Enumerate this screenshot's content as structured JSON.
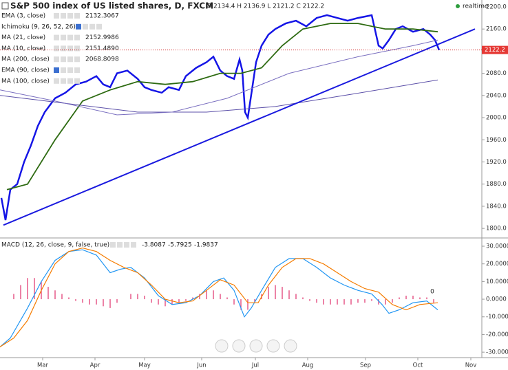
{
  "chart_data": [
    {
      "type": "line",
      "title": "S&P 500 index of US listed shares, D, FXCM",
      "ohlc_text": "O 2134.4 H 2136.9 L 2121.2 C 2122.2",
      "status": "realtime",
      "xlim": [
        0,
        175
      ],
      "ylim": [
        1784,
        2212.4
      ],
      "yticks": [
        {
          "value": 1800,
          "label": "1800.0"
        },
        {
          "value": 1840,
          "label": "1840.0"
        },
        {
          "value": 1880,
          "label": "1880.0"
        },
        {
          "value": 1920,
          "label": "1920.0"
        },
        {
          "value": 1960,
          "label": "1960.0"
        },
        {
          "value": 2000,
          "label": "2000.0"
        },
        {
          "value": 2040,
          "label": "2040.0"
        },
        {
          "value": 2080,
          "label": "2080.0"
        },
        {
          "value": 2120,
          "label": "2120.0"
        },
        {
          "value": 2160,
          "label": "2160.0"
        },
        {
          "value": 2200,
          "label": "2200.0"
        }
      ],
      "last_price": 2122.2,
      "trend_line": {
        "x": [
          1.25,
          172.5
        ],
        "values": [
          1806,
          2160
        ],
        "color": "#1a1adf"
      },
      "series": [
        {
          "name": "EMA (3, close)",
          "last": 2132.3067,
          "color": "#1515e6",
          "x": [
            0.5,
            2,
            3.75,
            6.25,
            8.75,
            11.25,
            13.75,
            16.25,
            20,
            23.75,
            27.5,
            31.25,
            35,
            37.5,
            40,
            42.5,
            46.25,
            50,
            52.5,
            55,
            58.75,
            61.25,
            65,
            67.5,
            71.25,
            75,
            77.5,
            80,
            82.5,
            85,
            87,
            88,
            89,
            90,
            91.5,
            93,
            95,
            97.5,
            100,
            103.75,
            107.5,
            111.25,
            115,
            118.75,
            122.5,
            126.25,
            130,
            135,
            137.5,
            139,
            141.25,
            143.75,
            146.25,
            150,
            153.75,
            156.25,
            158,
            159.5
          ],
          "values": [
            1855,
            1815,
            1870,
            1880,
            1920,
            1950,
            1985,
            2010,
            2035,
            2045,
            2060,
            2065,
            2075,
            2060,
            2055,
            2080,
            2085,
            2070,
            2055,
            2050,
            2045,
            2055,
            2050,
            2075,
            2090,
            2100,
            2110,
            2085,
            2075,
            2070,
            2105,
            2085,
            2010,
            2000,
            2050,
            2100,
            2130,
            2150,
            2160,
            2170,
            2175,
            2165,
            2180,
            2185,
            2180,
            2175,
            2180,
            2185,
            2130,
            2125,
            2140,
            2160,
            2165,
            2155,
            2160,
            2150,
            2140,
            2122
          ]
        },
        {
          "name": "Ichimoku (9, 26, 52, 26)",
          "color": "#888888"
        },
        {
          "name": "MA (21, close)",
          "last": 2152.9986,
          "color": "#2e6b12",
          "x": [
            2.5,
            10,
            20,
            30,
            40,
            50,
            60,
            70,
            80,
            87.5,
            95,
            102.5,
            110,
            120,
            130,
            140,
            150,
            159
          ],
          "values": [
            1870,
            1880,
            1960,
            2030,
            2050,
            2065,
            2060,
            2065,
            2080,
            2080,
            2090,
            2130,
            2160,
            2170,
            2170,
            2160,
            2160,
            2155
          ]
        },
        {
          "name": "MA (10, close)",
          "last": 2151.489,
          "last_label": "2151.4890",
          "color": "#555555"
        },
        {
          "name": "MA (200, close)",
          "last": 2068.8098,
          "color": "#5b4fa8",
          "x": [
            0,
            25,
            50,
            75,
            100,
            125,
            159
          ],
          "values": [
            2040,
            2025,
            2010,
            2010,
            2020,
            2040,
            2068
          ]
        },
        {
          "name": "EMA (90, close)",
          "color": "#888888"
        },
        {
          "name": "MA (100, close)",
          "color": "#7a6fc0",
          "x": [
            0,
            20,
            42.5,
            62.5,
            82.5,
            105,
            130,
            150,
            159
          ],
          "values": [
            2050,
            2030,
            2005,
            2010,
            2035,
            2080,
            2110,
            2130,
            2140
          ]
        }
      ],
      "xticks": [
        {
          "value": 15.5,
          "label": "Mar"
        },
        {
          "value": 34.5,
          "label": "Apr"
        },
        {
          "value": 52.5,
          "label": "May"
        },
        {
          "value": 73.25,
          "label": "Jun"
        },
        {
          "value": 92.75,
          "label": "Jul"
        },
        {
          "value": 111.75,
          "label": "Aug"
        },
        {
          "value": 132.75,
          "label": "Sep"
        },
        {
          "value": 151.75,
          "label": "Oct"
        },
        {
          "value": 171,
          "label": "Nov"
        }
      ]
    },
    {
      "type": "macd",
      "title": "MACD (12, 26, close, 9, false, true)",
      "readings": [
        -3.8087,
        -5.7925,
        -1.9837
      ],
      "reading_colors": [
        "#e0306a",
        "#1e88e5",
        "#ef6c00"
      ],
      "xlim": [
        0,
        175
      ],
      "ylim": [
        -32.3,
        33.9
      ],
      "yticks": [
        {
          "value": 30,
          "label": "30.0000"
        },
        {
          "value": 20,
          "label": "20.0000"
        },
        {
          "value": 10,
          "label": "10.0000"
        },
        {
          "value": 0,
          "label": "0.0000"
        },
        {
          "value": -10,
          "label": "-10.0000"
        },
        {
          "value": -20,
          "label": "-20.0000"
        },
        {
          "value": -30,
          "label": "-30.0000"
        }
      ],
      "annotations": [
        {
          "text": "0",
          "x": 157,
          "y": 2
        }
      ],
      "histogram": {
        "color": "#e0306a",
        "x": [
          5,
          7.5,
          10,
          12.5,
          15,
          17.5,
          20,
          22.5,
          25,
          27.5,
          30,
          32.5,
          35,
          37.5,
          40,
          42.5,
          45,
          47.5,
          50,
          52.5,
          55,
          57.5,
          60,
          62.5,
          65,
          67.5,
          70,
          72.5,
          75,
          77.5,
          80,
          82.5,
          85,
          87.5,
          90,
          92.5,
          95,
          97.5,
          100,
          102.5,
          105,
          107.5,
          110,
          112.5,
          115,
          117.5,
          120,
          122.5,
          125,
          127.5,
          130,
          132.5,
          135,
          137.5,
          140,
          142.5,
          145,
          147.5,
          150,
          152.5,
          155,
          157.5
        ],
        "values": [
          3,
          8,
          12,
          12,
          10,
          7,
          5,
          3,
          1,
          -1,
          -2,
          -3,
          -3,
          -4,
          -5,
          -2,
          0,
          3,
          3,
          2,
          -2,
          -3,
          -4,
          -3,
          -2,
          -1,
          1,
          3,
          5,
          5,
          3,
          1,
          -3,
          -6,
          -6,
          -2,
          3,
          7,
          8,
          7,
          5,
          3,
          1,
          -1,
          -2,
          -3,
          -3,
          -3,
          -3,
          -3,
          -2,
          -2,
          -1,
          -3,
          -3,
          -2,
          1,
          2,
          2,
          1,
          1,
          -2
        ]
      },
      "series": [
        {
          "name": "MACD",
          "color": "#2196f3",
          "x": [
            0,
            3.75,
            10,
            15,
            20,
            25,
            30,
            35,
            40,
            43.75,
            47.5,
            52.5,
            57.5,
            62.5,
            67.5,
            72.5,
            77.5,
            81.25,
            85,
            88.75,
            91.25,
            95,
            100,
            105,
            110,
            115,
            120,
            125,
            130,
            135,
            138.75,
            141.25,
            145,
            150,
            155,
            159
          ],
          "values": [
            -27,
            -22,
            -5,
            10,
            22,
            27,
            28,
            25,
            15,
            17,
            18,
            12,
            2,
            -3,
            -2,
            2,
            10,
            12,
            5,
            -10,
            -5,
            5,
            18,
            23,
            23,
            18,
            12,
            8,
            5,
            3,
            -3,
            -8,
            -6,
            -2,
            -1,
            -6
          ]
        },
        {
          "name": "Signal",
          "color": "#f57c00",
          "x": [
            0,
            5,
            10,
            15,
            20,
            25,
            30,
            35,
            40,
            45,
            50,
            55,
            60,
            65,
            70,
            75,
            80,
            85,
            90,
            93.75,
            97.5,
            102.5,
            107.5,
            112.5,
            117.5,
            122.5,
            127.5,
            132.5,
            137.5,
            142.5,
            147.5,
            152.5,
            159
          ],
          "values": [
            -27,
            -22,
            -12,
            5,
            20,
            27,
            29,
            27,
            22,
            18,
            15,
            8,
            0,
            -2,
            -1,
            5,
            11,
            8,
            -2,
            -2,
            8,
            18,
            23,
            23,
            20,
            15,
            10,
            6,
            4,
            -3,
            -6,
            -3,
            -2
          ]
        }
      ]
    }
  ]
}
